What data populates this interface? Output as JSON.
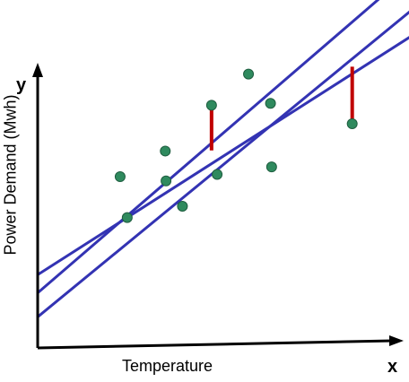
{
  "chart_data": {
    "type": "scatter",
    "title": "",
    "xlabel": "Temperature",
    "ylabel": "Power Demand (Mwh)",
    "x_axis_letter": "x",
    "y_axis_letter": "y",
    "xlim": [
      0,
      100
    ],
    "ylim": [
      0,
      100
    ],
    "grid": false,
    "points": [
      {
        "x": 22.1,
        "y": 52.2
      },
      {
        "x": 24.0,
        "y": 39.6
      },
      {
        "x": 34.2,
        "y": 60.1
      },
      {
        "x": 34.4,
        "y": 50.9
      },
      {
        "x": 38.8,
        "y": 43.1
      },
      {
        "x": 46.6,
        "y": 74.2
      },
      {
        "x": 48.1,
        "y": 52.9
      },
      {
        "x": 56.5,
        "y": 83.8
      },
      {
        "x": 62.4,
        "y": 74.8
      },
      {
        "x": 62.7,
        "y": 55.2
      },
      {
        "x": 84.3,
        "y": 68.5
      }
    ],
    "fit_lines": [
      {
        "x": [
          0,
          100
        ],
        "y": [
          16.4,
          115.4
        ]
      },
      {
        "x": [
          0,
          100
        ],
        "y": [
          22.0,
          95.4
        ]
      },
      {
        "x": [
          0,
          100
        ],
        "y": [
          9.0,
          103.3
        ]
      }
    ],
    "residuals": [
      {
        "x": 46.6,
        "y_from": 74.2,
        "y_to": 60.3
      },
      {
        "x": 84.3,
        "y_from": 68.5,
        "y_to": 86.1
      }
    ],
    "colors": {
      "point_fill": "#2f8a5e",
      "point_stroke": "#1f5e40",
      "line": "#3333b3",
      "residual": "#c00000",
      "axis": "#000000"
    }
  }
}
